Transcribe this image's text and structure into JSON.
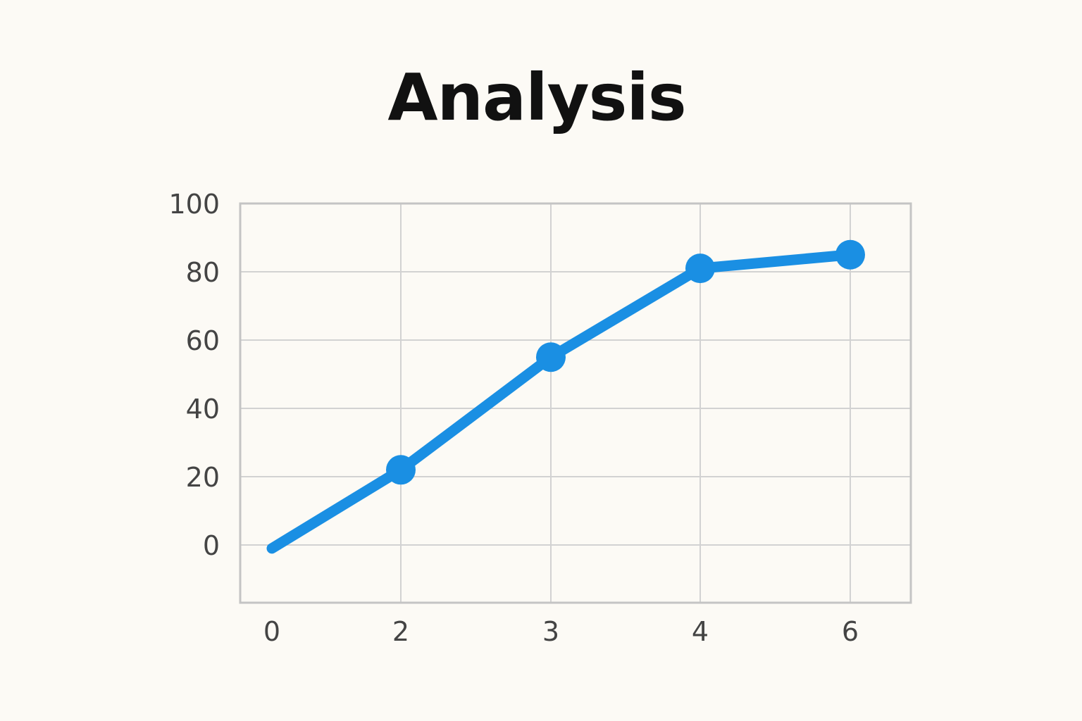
{
  "chart_data": {
    "type": "line",
    "title": "Analysis",
    "xlabel": "",
    "ylabel": "",
    "x_ticks": [
      "0",
      "2",
      "3",
      "4",
      "6"
    ],
    "y_ticks": [
      "0",
      "20",
      "40",
      "60",
      "80",
      "100"
    ],
    "ylim": [
      -17,
      100
    ],
    "grid": true,
    "series": [
      {
        "color": "#1a8fe3",
        "values": [
          -1,
          22,
          55,
          81,
          85
        ],
        "markers": [
          false,
          true,
          true,
          true,
          true
        ]
      }
    ]
  }
}
